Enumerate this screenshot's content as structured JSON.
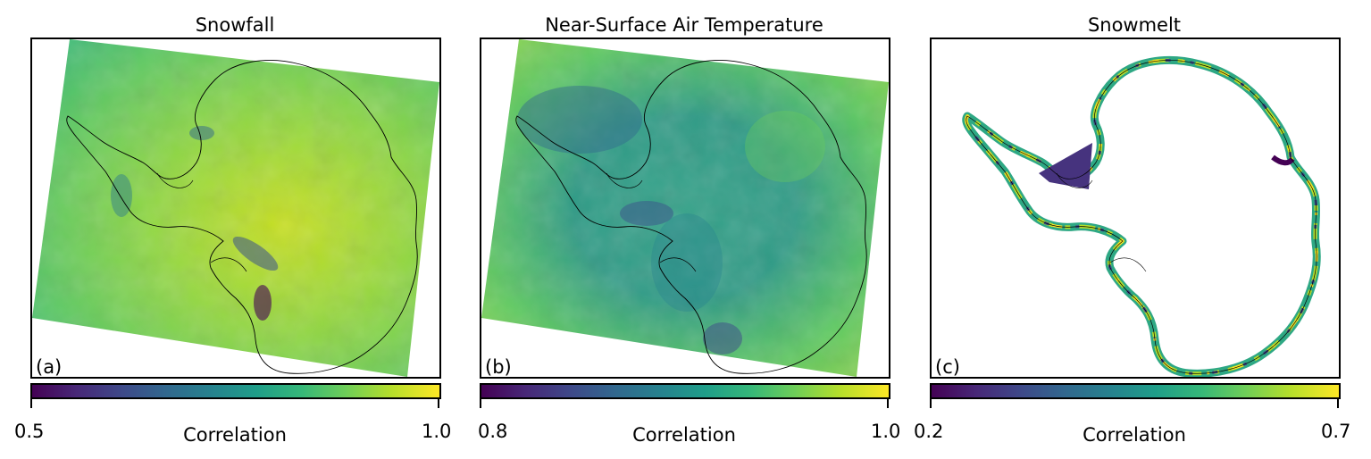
{
  "panels": [
    {
      "title": "Snowfall",
      "label": "(a)",
      "colorbar": {
        "min": "0.5",
        "max": "1.0",
        "label": "Correlation"
      }
    },
    {
      "title": "Near-Surface Air Temperature",
      "label": "(b)",
      "colorbar": {
        "min": "0.8",
        "max": "1.0",
        "label": "Correlation"
      }
    },
    {
      "title": "Snowmelt",
      "label": "(c)",
      "colorbar": {
        "min": "0.2",
        "max": "0.7",
        "label": "Correlation"
      }
    }
  ],
  "colormap": [
    "#440154",
    "#3e4989",
    "#26828e",
    "#35b779",
    "#b5de2b",
    "#fde725"
  ]
}
